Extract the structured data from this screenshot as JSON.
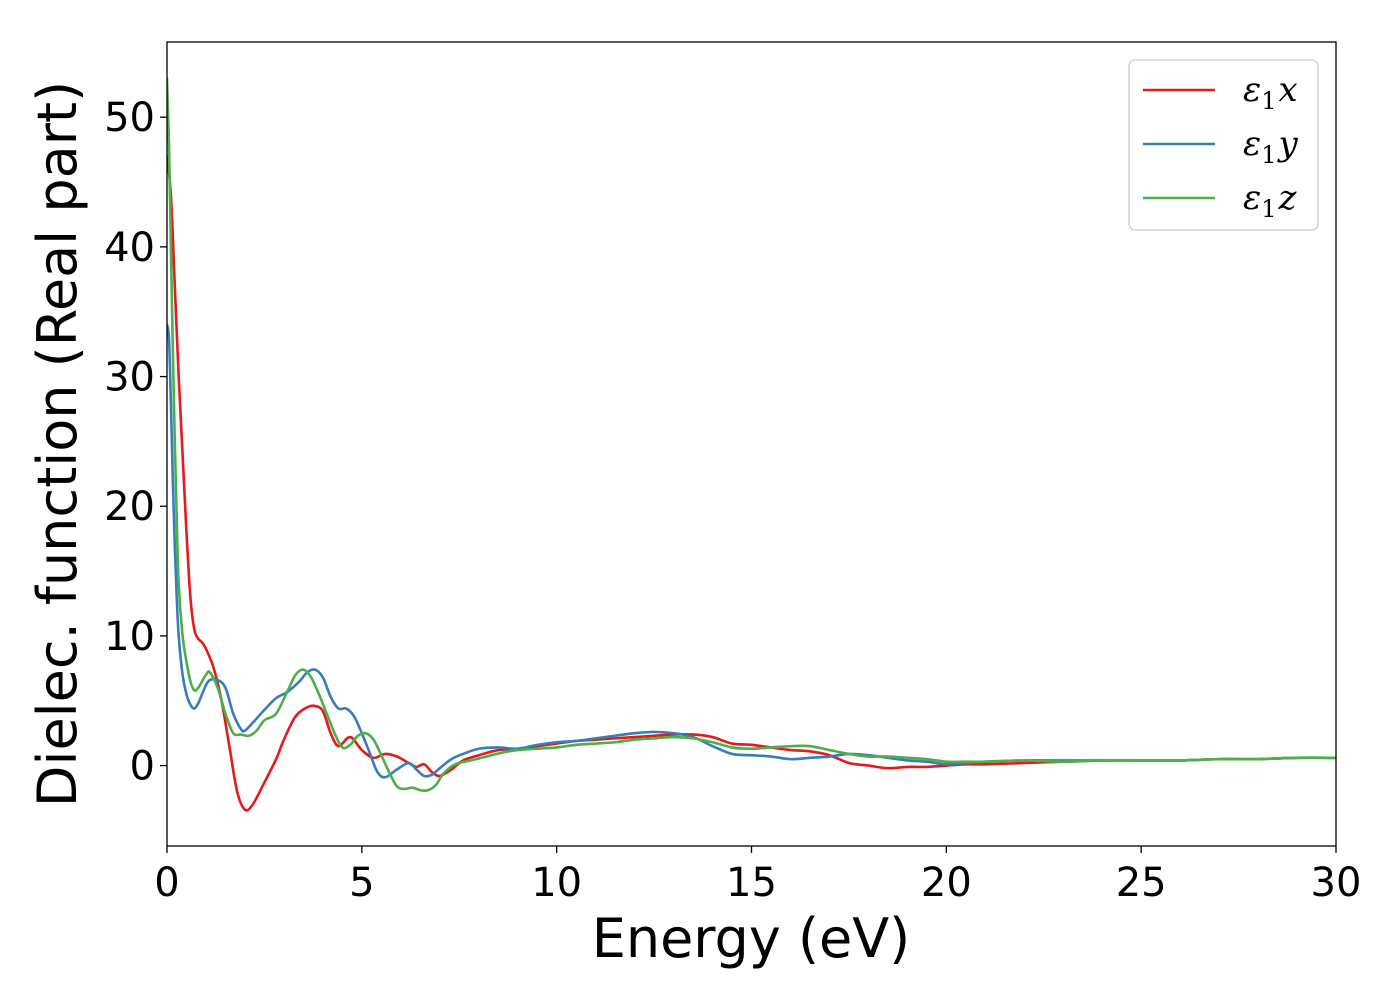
{
  "chart_data": {
    "type": "line",
    "xlabel": "Energy (eV)",
    "ylabel": "Dielec. function (Real part)",
    "xlim": [
      0,
      30
    ],
    "ylim": [
      -6.2,
      55.8
    ],
    "x_ticks": [
      0,
      5,
      10,
      15,
      20,
      25,
      30
    ],
    "x_tick_labels": [
      "0",
      "5",
      "10",
      "15",
      "20",
      "25",
      "30"
    ],
    "y_ticks": [
      0,
      10,
      20,
      30,
      40,
      50
    ],
    "y_tick_labels": [
      "0",
      "10",
      "20",
      "30",
      "40",
      "50"
    ],
    "grid": false,
    "legend_position": "top-right",
    "series": [
      {
        "name": "ε1x",
        "legend": {
          "base": "ε",
          "sub": "1",
          "var": "x"
        },
        "color": "#e41a1c",
        "x": [
          0,
          0.1,
          0.2,
          0.3,
          0.4,
          0.5,
          0.6,
          0.7,
          0.8,
          0.9,
          1.0,
          1.2,
          1.4,
          1.6,
          1.8,
          2.0,
          2.2,
          2.5,
          2.8,
          3.0,
          3.3,
          3.6,
          3.8,
          4.0,
          4.2,
          4.4,
          4.7,
          5.0,
          5.3,
          5.6,
          5.9,
          6.2,
          6.4,
          6.6,
          6.8,
          7.0,
          7.3,
          7.6,
          8.0,
          8.5,
          9.0,
          9.5,
          10,
          10.5,
          11,
          11.5,
          12,
          12.5,
          13,
          13.5,
          14,
          14.5,
          15,
          15.5,
          16,
          16.5,
          17,
          17.5,
          18,
          18.5,
          19,
          19.5,
          20,
          20.5,
          21,
          22,
          23,
          24,
          25,
          26,
          27,
          28,
          29,
          30
        ],
        "y": [
          47,
          44,
          37,
          30,
          24,
          18,
          13,
          10.5,
          9.8,
          9.5,
          9.0,
          7.5,
          5.0,
          1.5,
          -2.0,
          -3.4,
          -3.0,
          -1.3,
          0.5,
          2.0,
          3.8,
          4.5,
          4.6,
          4.2,
          2.5,
          1.5,
          2.2,
          1.2,
          0.6,
          0.9,
          0.7,
          0.2,
          -0.1,
          0.1,
          -0.5,
          -0.8,
          -0.3,
          0.4,
          0.8,
          1.2,
          1.3,
          1.5,
          1.7,
          1.9,
          2.0,
          2.1,
          2.2,
          2.3,
          2.4,
          2.4,
          2.2,
          1.7,
          1.6,
          1.4,
          1.2,
          1.1,
          0.8,
          0.2,
          0.0,
          -0.2,
          -0.1,
          -0.1,
          0.0,
          0.1,
          0.1,
          0.2,
          0.3,
          0.4,
          0.4,
          0.4,
          0.5,
          0.5,
          0.6,
          0.6
        ]
      },
      {
        "name": "ε1y",
        "legend": {
          "base": "ε",
          "sub": "1",
          "var": "y"
        },
        "color": "#377eb8",
        "x": [
          0,
          0.05,
          0.1,
          0.15,
          0.2,
          0.25,
          0.3,
          0.4,
          0.5,
          0.6,
          0.7,
          0.8,
          0.9,
          1.0,
          1.1,
          1.3,
          1.5,
          1.7,
          1.9,
          2.0,
          2.2,
          2.5,
          2.8,
          3.1,
          3.4,
          3.6,
          3.8,
          4.0,
          4.2,
          4.4,
          4.6,
          4.8,
          5.0,
          5.2,
          5.4,
          5.6,
          5.9,
          6.2,
          6.4,
          6.6,
          6.8,
          7.0,
          7.3,
          7.6,
          8.0,
          8.5,
          9.0,
          9.5,
          10,
          10.5,
          11,
          11.5,
          12,
          12.5,
          13,
          13.5,
          14,
          14.5,
          15,
          15.5,
          16,
          16.5,
          17,
          17.5,
          18,
          18.5,
          19,
          19.5,
          20,
          20.5,
          21,
          22,
          23,
          24,
          25,
          26,
          27,
          28,
          29,
          30
        ],
        "y": [
          34,
          33,
          28,
          22,
          17,
          13,
          10,
          7.0,
          5.5,
          4.7,
          4.4,
          4.8,
          5.5,
          6.2,
          6.6,
          6.6,
          6.0,
          4.0,
          2.8,
          2.7,
          3.3,
          4.3,
          5.2,
          5.7,
          6.5,
          7.2,
          7.4,
          6.8,
          5.3,
          4.4,
          4.4,
          3.8,
          2.5,
          1.0,
          -0.5,
          -0.9,
          -0.3,
          0.2,
          -0.3,
          -0.8,
          -0.7,
          -0.2,
          0.5,
          0.9,
          1.3,
          1.4,
          1.3,
          1.6,
          1.8,
          1.9,
          2.1,
          2.3,
          2.5,
          2.6,
          2.5,
          2.2,
          1.5,
          0.9,
          0.8,
          0.7,
          0.5,
          0.6,
          0.7,
          0.9,
          0.8,
          0.6,
          0.4,
          0.3,
          0.1,
          0.2,
          0.3,
          0.4,
          0.4,
          0.4,
          0.4,
          0.4,
          0.5,
          0.5,
          0.6,
          0.6
        ]
      },
      {
        "name": "ε1z",
        "legend": {
          "base": "ε",
          "sub": "1",
          "var": "z"
        },
        "color": "#4daf4a",
        "x": [
          0,
          0.05,
          0.1,
          0.15,
          0.2,
          0.25,
          0.3,
          0.4,
          0.5,
          0.6,
          0.7,
          0.8,
          0.9,
          1.0,
          1.1,
          1.3,
          1.5,
          1.7,
          1.9,
          2.1,
          2.3,
          2.5,
          2.8,
          3.1,
          3.3,
          3.5,
          3.7,
          3.9,
          4.1,
          4.3,
          4.5,
          4.7,
          4.9,
          5.1,
          5.3,
          5.5,
          5.7,
          5.9,
          6.1,
          6.3,
          6.5,
          6.7,
          6.9,
          7.1,
          7.4,
          7.8,
          8.2,
          8.6,
          9.0,
          9.5,
          10,
          10.5,
          11,
          11.5,
          12,
          12.5,
          13,
          13.5,
          14,
          14.5,
          15,
          15.5,
          16,
          16.5,
          17,
          17.5,
          18,
          18.5,
          19,
          19.5,
          20,
          20.5,
          21,
          22,
          23,
          24,
          25,
          26,
          27,
          28,
          29,
          30
        ],
        "y": [
          53,
          48,
          40,
          32,
          25,
          19,
          14,
          10,
          8.0,
          6.5,
          5.8,
          6.0,
          6.5,
          7.0,
          7.2,
          6.0,
          4.0,
          2.5,
          2.4,
          2.3,
          2.7,
          3.5,
          4.0,
          5.8,
          7.0,
          7.4,
          6.8,
          5.5,
          4.0,
          2.5,
          1.4,
          1.6,
          2.3,
          2.5,
          2.0,
          0.8,
          -0.5,
          -1.6,
          -1.8,
          -1.7,
          -1.9,
          -1.9,
          -1.5,
          -0.6,
          0.1,
          0.4,
          0.7,
          1.0,
          1.2,
          1.3,
          1.4,
          1.6,
          1.7,
          1.8,
          2.0,
          2.1,
          2.2,
          2.1,
          1.8,
          1.4,
          1.3,
          1.4,
          1.5,
          1.5,
          1.2,
          0.9,
          0.7,
          0.7,
          0.6,
          0.5,
          0.3,
          0.3,
          0.3,
          0.4,
          0.3,
          0.4,
          0.4,
          0.4,
          0.5,
          0.5,
          0.6,
          0.6
        ]
      }
    ]
  }
}
